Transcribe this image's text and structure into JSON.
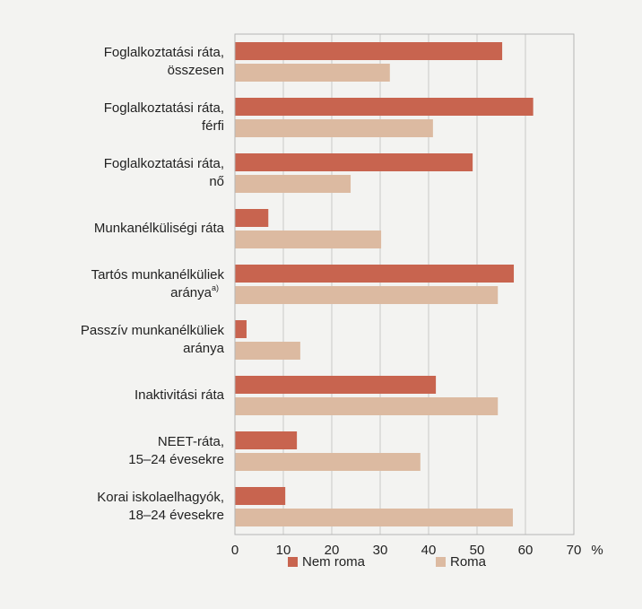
{
  "chart_data": {
    "type": "bar",
    "orientation": "horizontal",
    "categories": [
      [
        "Foglalkoztatási ráta,",
        "összesen"
      ],
      [
        "Foglalkoztatási ráta,",
        "férfi"
      ],
      [
        "Foglalkoztatási ráta,",
        "nő"
      ],
      [
        "Munkanélküliségi ráta"
      ],
      [
        "Tartós munkanélküliek",
        "aránya"
      ],
      [
        "Passzív munkanélküliek",
        "aránya"
      ],
      [
        "Inaktivitási ráta"
      ],
      [
        "NEET-ráta,",
        "15–24 évesekre"
      ],
      [
        "Korai iskolaelhagyók,",
        "18–24 évesekre"
      ]
    ],
    "category_footnotes": [
      null,
      null,
      null,
      null,
      "a)",
      null,
      null,
      null,
      null
    ],
    "series": [
      {
        "name": "Nem roma",
        "color": "#c8644f",
        "values": [
          55.2,
          61.6,
          49.1,
          6.9,
          57.6,
          2.4,
          41.5,
          12.8,
          10.4
        ]
      },
      {
        "name": "Roma",
        "color": "#dcbaa1",
        "values": [
          32.0,
          40.9,
          23.9,
          30.2,
          54.3,
          13.5,
          54.3,
          38.3,
          57.4
        ]
      }
    ],
    "xlim": [
      0,
      70
    ],
    "xticks": [
      0,
      10,
      20,
      30,
      40,
      50,
      60,
      70
    ],
    "x_unit": "%",
    "grid": true,
    "legend": "bottom"
  }
}
